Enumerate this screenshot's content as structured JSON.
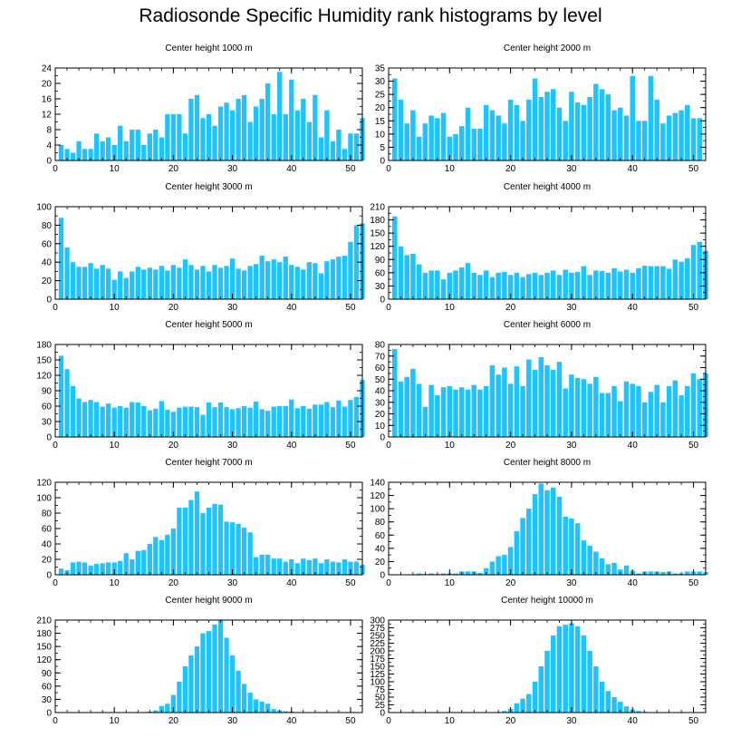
{
  "page": {
    "title": "Radiosonde Specific Humidity rank histograms by level"
  },
  "style": {
    "bar_color": "#1ec3ff",
    "axis_color": "#000000"
  },
  "chart_data": [
    {
      "type": "bar",
      "title": "Center height 1000 m",
      "xlim": [
        0,
        52
      ],
      "ylim": [
        0,
        24
      ],
      "xticks": [
        0,
        10,
        20,
        30,
        40,
        50
      ],
      "yticks": [
        0,
        4,
        8,
        12,
        16,
        20,
        24
      ],
      "values": [
        4,
        3,
        2,
        5,
        3,
        3,
        7,
        5,
        6,
        4,
        9,
        5,
        8,
        8,
        4,
        7,
        8,
        6,
        12,
        12,
        12,
        7,
        16,
        17,
        11,
        12,
        9,
        14,
        15,
        13,
        16,
        17,
        10,
        14,
        16,
        20,
        12,
        23,
        12,
        21,
        13,
        16,
        10,
        17,
        6,
        13,
        5,
        8,
        3,
        7,
        7,
        11
      ]
    },
    {
      "type": "bar",
      "title": "Center height 2000 m",
      "xlim": [
        0,
        52
      ],
      "ylim": [
        0,
        35
      ],
      "xticks": [
        0,
        10,
        20,
        30,
        40,
        50
      ],
      "yticks": [
        0,
        5,
        10,
        15,
        20,
        25,
        30,
        35
      ],
      "values": [
        31,
        23,
        14,
        19,
        9,
        14,
        17,
        16,
        18,
        9,
        10,
        13,
        20,
        12,
        12,
        21,
        19,
        17,
        14,
        23,
        21,
        15,
        23,
        31,
        24,
        26,
        27,
        20,
        15,
        26,
        22,
        21,
        24,
        29,
        27,
        25,
        19,
        20,
        17,
        32,
        15,
        15,
        32,
        23,
        14,
        17,
        18,
        19,
        21,
        16,
        16
      ]
    },
    {
      "type": "bar",
      "title": "Center height 3000 m",
      "xlim": [
        0,
        52
      ],
      "ylim": [
        0,
        100
      ],
      "xticks": [
        0,
        10,
        20,
        30,
        40,
        50
      ],
      "yticks": [
        0,
        20,
        40,
        60,
        80,
        100
      ],
      "values": [
        88,
        56,
        40,
        35,
        35,
        39,
        33,
        37,
        33,
        21,
        30,
        23,
        30,
        35,
        32,
        34,
        32,
        36,
        31,
        37,
        34,
        43,
        37,
        32,
        36,
        30,
        37,
        34,
        36,
        44,
        33,
        31,
        36,
        38,
        47,
        41,
        43,
        40,
        46,
        37,
        35,
        32,
        40,
        39,
        28,
        41,
        43,
        46,
        47,
        62,
        80,
        82
      ]
    },
    {
      "type": "bar",
      "title": "Center height 4000 m",
      "xlim": [
        0,
        52
      ],
      "ylim": [
        0,
        210
      ],
      "xticks": [
        0,
        10,
        20,
        30,
        40,
        50
      ],
      "yticks": [
        0,
        30,
        60,
        90,
        120,
        150,
        180,
        210
      ],
      "values": [
        188,
        120,
        100,
        103,
        79,
        60,
        65,
        65,
        45,
        60,
        65,
        72,
        82,
        60,
        55,
        65,
        50,
        60,
        62,
        55,
        60,
        50,
        57,
        60,
        55,
        60,
        65,
        55,
        67,
        60,
        62,
        75,
        55,
        65,
        64,
        60,
        70,
        63,
        67,
        60,
        70,
        76,
        75,
        75,
        75,
        69,
        90,
        85,
        93,
        123,
        130,
        110,
        114
      ]
    },
    {
      "type": "bar",
      "title": "Center height 5000 m",
      "xlim": [
        0,
        52
      ],
      "ylim": [
        0,
        180
      ],
      "xticks": [
        0,
        10,
        20,
        30,
        40,
        50
      ],
      "yticks": [
        0,
        30,
        60,
        90,
        120,
        150,
        180
      ],
      "values": [
        158,
        132,
        99,
        75,
        68,
        72,
        68,
        59,
        65,
        57,
        60,
        57,
        68,
        67,
        60,
        52,
        55,
        70,
        53,
        49,
        57,
        59,
        59,
        58,
        43,
        67,
        58,
        67,
        58,
        54,
        56,
        60,
        57,
        69,
        54,
        51,
        59,
        60,
        60,
        73,
        56,
        60,
        55,
        63,
        63,
        68,
        58,
        71,
        59,
        72,
        78,
        111
      ]
    },
    {
      "type": "bar",
      "title": "Center height 6000 m",
      "xlim": [
        0,
        52
      ],
      "ylim": [
        0,
        80
      ],
      "xticks": [
        0,
        10,
        20,
        30,
        40,
        50
      ],
      "yticks": [
        0,
        10,
        20,
        30,
        40,
        50,
        60,
        70,
        80
      ],
      "values": [
        76,
        48,
        52,
        59,
        46,
        26,
        45,
        36,
        43,
        44,
        41,
        43,
        41,
        45,
        41,
        44,
        62,
        54,
        60,
        46,
        61,
        44,
        67,
        58,
        69,
        62,
        58,
        65,
        42,
        54,
        51,
        50,
        46,
        52,
        38,
        38,
        44,
        31,
        48,
        46,
        44,
        30,
        39,
        45,
        30,
        44,
        49,
        36,
        44,
        55,
        50,
        55
      ]
    },
    {
      "type": "bar",
      "title": "Center height 7000 m",
      "xlim": [
        0,
        52
      ],
      "ylim": [
        0,
        120
      ],
      "xticks": [
        0,
        10,
        20,
        30,
        40,
        50
      ],
      "yticks": [
        0,
        20,
        40,
        60,
        80,
        100,
        120
      ],
      "values": [
        8,
        6,
        16,
        17,
        16,
        12,
        14,
        15,
        16,
        16,
        18,
        28,
        20,
        31,
        32,
        40,
        49,
        45,
        52,
        60,
        87,
        87,
        97,
        108,
        80,
        87,
        92,
        91,
        69,
        68,
        66,
        61,
        55,
        23,
        26,
        26,
        21,
        21,
        17,
        20,
        15,
        21,
        19,
        21,
        15,
        20,
        17,
        16,
        20,
        17,
        17,
        13
      ]
    },
    {
      "type": "bar",
      "title": "Center height 8000 m",
      "xlim": [
        0,
        52
      ],
      "ylim": [
        0,
        140
      ],
      "xticks": [
        0,
        10,
        20,
        30,
        40,
        50
      ],
      "yticks": [
        0,
        20,
        40,
        60,
        80,
        100,
        120,
        140
      ],
      "values": [
        0,
        0,
        0,
        0,
        2,
        1,
        2,
        1,
        2,
        2,
        2,
        5,
        5,
        5,
        3,
        10,
        20,
        28,
        30,
        42,
        66,
        86,
        100,
        122,
        138,
        128,
        132,
        118,
        88,
        85,
        78,
        52,
        44,
        35,
        25,
        16,
        18,
        8,
        14,
        6,
        2,
        5,
        5,
        5,
        4,
        5,
        2,
        2,
        5,
        5,
        5,
        4
      ]
    },
    {
      "type": "bar",
      "title": "Center height 9000 m",
      "xlim": [
        0,
        52
      ],
      "ylim": [
        0,
        210
      ],
      "xticks": [
        0,
        10,
        20,
        30,
        40,
        50
      ],
      "yticks": [
        0,
        30,
        60,
        90,
        120,
        150,
        180,
        210
      ],
      "values": [
        0,
        0,
        0,
        0,
        0,
        0,
        0,
        0,
        0,
        0,
        0,
        0,
        0,
        0,
        0,
        2,
        5,
        15,
        20,
        40,
        70,
        105,
        130,
        150,
        180,
        185,
        200,
        210,
        170,
        130,
        95,
        65,
        45,
        30,
        25,
        20,
        8,
        5,
        3,
        2,
        1,
        0,
        0,
        0,
        0,
        0,
        0,
        0,
        0,
        0,
        0,
        0
      ]
    },
    {
      "type": "bar",
      "title": "Center height 10000 m",
      "xlim": [
        0,
        52
      ],
      "ylim": [
        0,
        300
      ],
      "xticks": [
        0,
        10,
        20,
        30,
        40,
        50
      ],
      "yticks": [
        0,
        25,
        50,
        75,
        100,
        125,
        150,
        175,
        200,
        225,
        250,
        275,
        300
      ],
      "values": [
        0,
        0,
        0,
        0,
        0,
        0,
        0,
        0,
        0,
        0,
        0,
        0,
        0,
        0,
        0,
        0,
        0,
        2,
        5,
        12,
        30,
        45,
        60,
        100,
        150,
        200,
        250,
        280,
        285,
        290,
        280,
        250,
        200,
        150,
        100,
        70,
        50,
        35,
        20,
        10,
        5,
        2,
        1,
        0,
        0,
        0,
        0,
        0,
        0,
        0,
        0,
        0
      ]
    }
  ]
}
